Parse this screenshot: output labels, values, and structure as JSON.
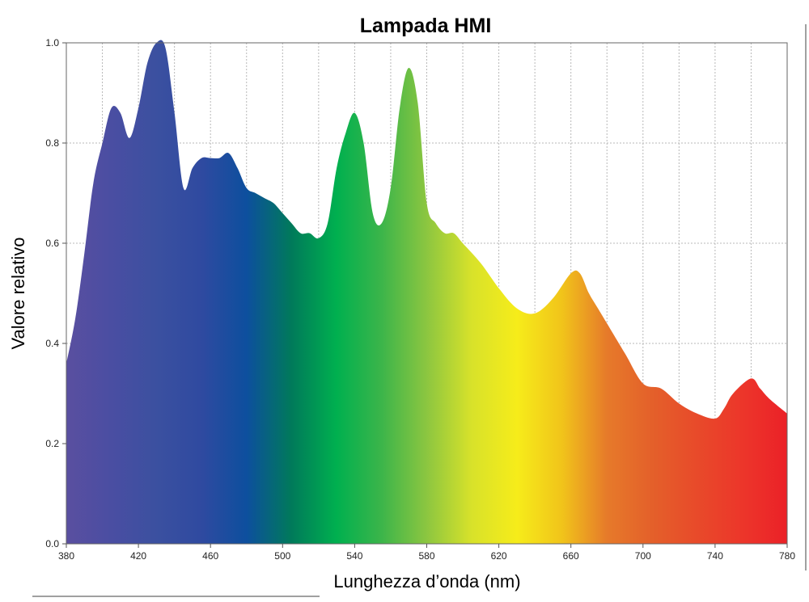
{
  "chart_data": {
    "type": "area",
    "title": "Lampada HMI",
    "xlabel": "Lunghezza d’onda (nm)",
    "ylabel": "Valore relativo",
    "xlim": [
      380,
      780
    ],
    "ylim": [
      0,
      1.0
    ],
    "x_ticks": [
      380,
      420,
      460,
      500,
      540,
      580,
      620,
      660,
      700,
      740,
      780
    ],
    "y_ticks": [
      "0.0",
      "0.2",
      "0.4",
      "0.6",
      "0.8",
      "1.0"
    ],
    "grid": true,
    "fill": "visible spectrum color gradient",
    "series": [
      {
        "x": [
          380,
          385,
          390,
          395,
          400,
          405,
          410,
          415,
          420,
          425,
          430,
          435,
          440,
          445,
          450,
          455,
          460,
          465,
          470,
          475,
          480,
          485,
          490,
          495,
          500,
          505,
          510,
          515,
          520,
          525,
          530,
          535,
          540,
          545,
          550,
          555,
          560,
          565,
          570,
          575,
          580,
          585,
          590,
          595,
          600,
          610,
          620,
          630,
          640,
          650,
          660,
          665,
          670,
          675,
          680,
          690,
          700,
          710,
          720,
          730,
          740,
          745,
          750,
          760,
          765,
          770,
          780
        ],
        "y": [
          0.36,
          0.45,
          0.58,
          0.72,
          0.8,
          0.87,
          0.86,
          0.81,
          0.87,
          0.96,
          1.0,
          0.99,
          0.86,
          0.71,
          0.75,
          0.77,
          0.77,
          0.77,
          0.78,
          0.75,
          0.71,
          0.7,
          0.69,
          0.68,
          0.66,
          0.64,
          0.62,
          0.62,
          0.61,
          0.64,
          0.75,
          0.82,
          0.86,
          0.8,
          0.66,
          0.64,
          0.71,
          0.87,
          0.95,
          0.88,
          0.68,
          0.64,
          0.62,
          0.62,
          0.6,
          0.56,
          0.51,
          0.47,
          0.46,
          0.49,
          0.54,
          0.54,
          0.5,
          0.47,
          0.44,
          0.38,
          0.32,
          0.31,
          0.28,
          0.26,
          0.25,
          0.27,
          0.3,
          0.33,
          0.31,
          0.29,
          0.26
        ]
      }
    ],
    "gradient_colors": [
      "#5a4fa0",
      "#4a4ea2",
      "#3b50a0",
      "#2f4aa0",
      "#0d4f9e",
      "#007a5a",
      "#00b04f",
      "#3cb54a",
      "#8cc640",
      "#d8e22a",
      "#f6ec1a",
      "#f1c41a",
      "#e67a2a",
      "#e4602a",
      "#e84a2a",
      "#ec362a",
      "#eb2128"
    ]
  }
}
